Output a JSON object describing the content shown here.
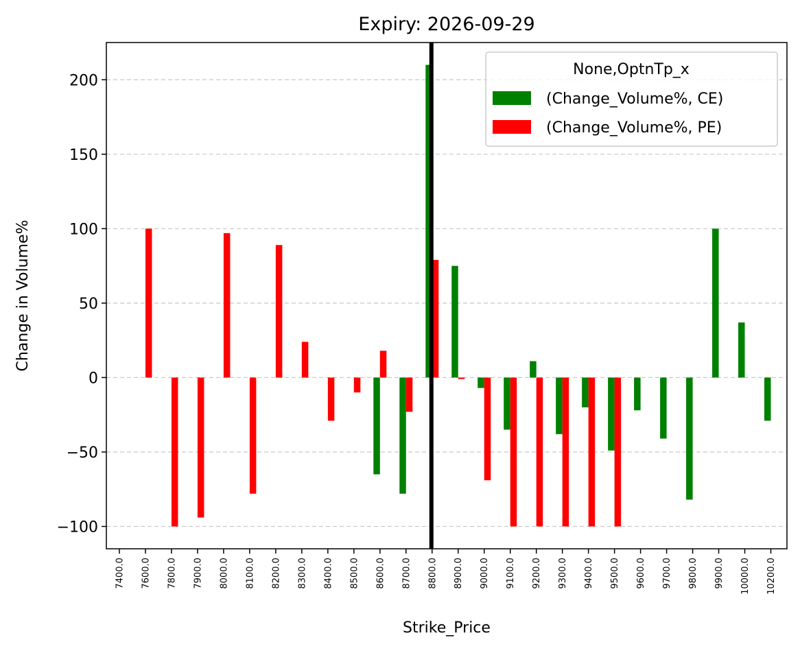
{
  "chart_data": {
    "type": "bar",
    "title": "Expiry: 2026-09-29",
    "xlabel": "Strike_Price",
    "ylabel": "Change in Volume%",
    "ylim": [
      -115,
      225
    ],
    "yticks": [
      -100,
      -50,
      0,
      50,
      100,
      150,
      200
    ],
    "grid": "y-dashed",
    "categories": [
      "7400.0",
      "7600.0",
      "7800.0",
      "7900.0",
      "8000.0",
      "8100.0",
      "8200.0",
      "8300.0",
      "8400.0",
      "8500.0",
      "8600.0",
      "8700.0",
      "8800.0",
      "8900.0",
      "9000.0",
      "9100.0",
      "9200.0",
      "9300.0",
      "9400.0",
      "9500.0",
      "9600.0",
      "9700.0",
      "9800.0",
      "9900.0",
      "10000.0",
      "10200.0"
    ],
    "series": [
      {
        "name": "(Change_Volume%, CE)",
        "color": "#008000",
        "values": [
          null,
          null,
          null,
          null,
          null,
          null,
          null,
          null,
          null,
          null,
          -65,
          -78,
          210,
          75,
          -7,
          -35,
          11,
          -38,
          -20,
          -49,
          -22,
          -41,
          -82,
          100,
          37,
          -29
        ]
      },
      {
        "name": "(Change_Volume%, PE)",
        "color": "#ff0000",
        "values": [
          null,
          100,
          -100,
          -94,
          97,
          -78,
          89,
          24,
          -29,
          -10,
          18,
          -23,
          79,
          -1,
          -69,
          -100,
          -100,
          -100,
          -100,
          -100,
          null,
          null,
          null,
          null,
          null,
          null
        ]
      }
    ],
    "vline": {
      "category": "8800.0",
      "color": "#000000"
    },
    "legend": {
      "title": "None,OptnTp_x",
      "placement": "top-right"
    }
  }
}
